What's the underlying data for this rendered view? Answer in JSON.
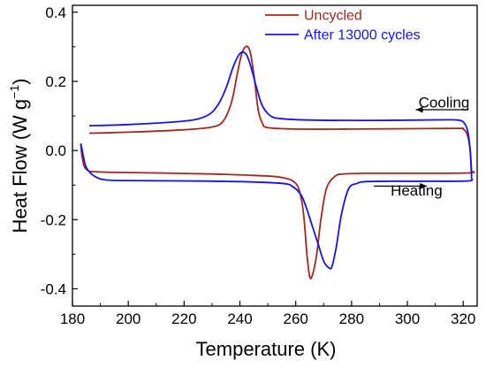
{
  "chart_data": {
    "type": "line",
    "xlabel": "Temperature (K)",
    "ylabel_main": "Heat Flow (W g",
    "ylabel_sup": "−1",
    "ylabel_close": ")",
    "xlim": [
      180,
      325
    ],
    "ylim": [
      -0.45,
      0.42
    ],
    "xticks": [
      180,
      200,
      220,
      240,
      260,
      280,
      300,
      320
    ],
    "yticks": [
      -0.4,
      -0.2,
      0.0,
      0.2,
      0.4
    ],
    "ytick_labels": [
      "-0.4",
      "-0.2",
      "0.0",
      "0.2",
      "0.4"
    ],
    "grid": false,
    "legend_position": "top-right",
    "series": [
      {
        "name": "Uncycled",
        "color": "#a0281e",
        "cooling": [
          [
            186,
            0.05
          ],
          [
            200,
            0.053
          ],
          [
            220,
            0.06
          ],
          [
            230,
            0.068
          ],
          [
            234,
            0.085
          ],
          [
            237,
            0.14
          ],
          [
            239,
            0.22
          ],
          [
            240.5,
            0.275
          ],
          [
            242,
            0.3
          ],
          [
            243.5,
            0.29
          ],
          [
            245,
            0.22
          ],
          [
            246.5,
            0.12
          ],
          [
            248,
            0.08
          ],
          [
            250,
            0.066
          ],
          [
            260,
            0.062
          ],
          [
            280,
            0.062
          ],
          [
            300,
            0.063
          ],
          [
            318,
            0.064
          ],
          [
            320,
            0.062
          ],
          [
            321.5,
            0.045
          ],
          [
            322.5,
            0.0
          ],
          [
            323,
            -0.06
          ]
        ],
        "heating": [
          [
            323,
            -0.06
          ],
          [
            322,
            -0.065
          ],
          [
            300,
            -0.066
          ],
          [
            285,
            -0.066
          ],
          [
            277,
            -0.068
          ],
          [
            274,
            -0.075
          ],
          [
            271,
            -0.11
          ],
          [
            269,
            -0.2
          ],
          [
            267.5,
            -0.3
          ],
          [
            266,
            -0.36
          ],
          [
            265,
            -0.365
          ],
          [
            264,
            -0.3
          ],
          [
            263,
            -0.2
          ],
          [
            262,
            -0.14
          ],
          [
            260,
            -0.095
          ],
          [
            255,
            -0.078
          ],
          [
            245,
            -0.072
          ],
          [
            230,
            -0.068
          ],
          [
            210,
            -0.065
          ],
          [
            190,
            -0.062
          ],
          [
            185,
            -0.055
          ],
          [
            183.5,
            -0.02
          ],
          [
            183,
            0.02
          ]
        ]
      },
      {
        "name": "After 13000 cycles",
        "color": "#1414e6",
        "cooling": [
          [
            186,
            0.072
          ],
          [
            200,
            0.075
          ],
          [
            220,
            0.085
          ],
          [
            228,
            0.1
          ],
          [
            232,
            0.13
          ],
          [
            235,
            0.18
          ],
          [
            237.5,
            0.24
          ],
          [
            239.5,
            0.275
          ],
          [
            241,
            0.285
          ],
          [
            242.5,
            0.275
          ],
          [
            244,
            0.24
          ],
          [
            246,
            0.18
          ],
          [
            248,
            0.13
          ],
          [
            251,
            0.1
          ],
          [
            255,
            0.092
          ],
          [
            265,
            0.088
          ],
          [
            285,
            0.087
          ],
          [
            305,
            0.088
          ],
          [
            315,
            0.089
          ],
          [
            318,
            0.088
          ],
          [
            320,
            0.083
          ],
          [
            321.5,
            0.06
          ],
          [
            322.5,
            0.0
          ],
          [
            323,
            -0.08
          ]
        ],
        "heating": [
          [
            323,
            -0.08
          ],
          [
            322,
            -0.088
          ],
          [
            310,
            -0.089
          ],
          [
            295,
            -0.089
          ],
          [
            285,
            -0.09
          ],
          [
            282,
            -0.095
          ],
          [
            279,
            -0.11
          ],
          [
            276.5,
            -0.18
          ],
          [
            274.5,
            -0.28
          ],
          [
            273,
            -0.335
          ],
          [
            272,
            -0.34
          ],
          [
            270,
            -0.32
          ],
          [
            268,
            -0.27
          ],
          [
            266,
            -0.22
          ],
          [
            264,
            -0.17
          ],
          [
            262,
            -0.13
          ],
          [
            259,
            -0.105
          ],
          [
            255,
            -0.095
          ],
          [
            240,
            -0.09
          ],
          [
            220,
            -0.088
          ],
          [
            200,
            -0.087
          ],
          [
            192,
            -0.085
          ],
          [
            188,
            -0.075
          ],
          [
            185,
            -0.05
          ],
          [
            184,
            -0.02
          ],
          [
            183.5,
            0.0
          ],
          [
            183,
            0.02
          ]
        ]
      }
    ],
    "annotations": [
      {
        "text": "Cooling",
        "x": 304,
        "y": 0.14,
        "arrow_from": [
          322,
          0.118
        ],
        "arrow_to": [
          303,
          0.118
        ],
        "direction": "left"
      },
      {
        "text": "Heating",
        "x": 294,
        "y": -0.115,
        "arrow_from": [
          288,
          -0.103
        ],
        "arrow_to": [
          307,
          -0.103
        ],
        "direction": "right"
      }
    ]
  }
}
